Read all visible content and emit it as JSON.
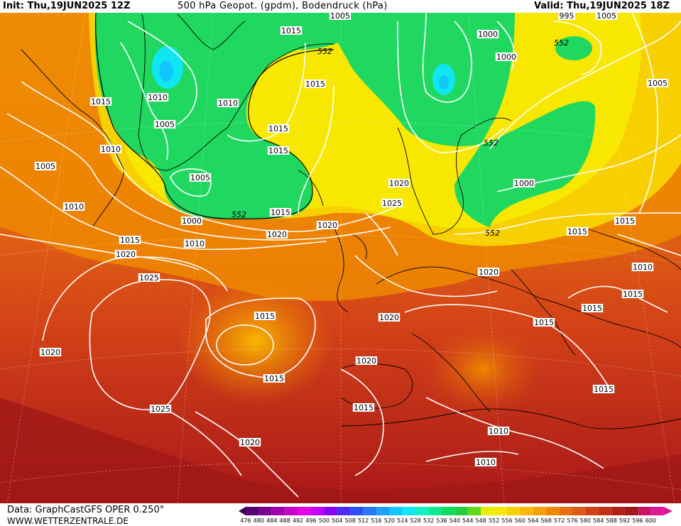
{
  "header": {
    "init": "Init: Thu,19JUN2025 12Z",
    "title": "500 hPa Geopot. (gpdm), Bodendruck (hPa)",
    "valid": "Valid: Thu,19JUN2025 18Z"
  },
  "footer": {
    "data": "Data: GraphCastGFS OPER 0.250°",
    "url": "WWW.WETTERZENTRALE.DE"
  },
  "legend": {
    "values": [
      "476",
      "480",
      "484",
      "488",
      "492",
      "496",
      "500",
      "504",
      "508",
      "512",
      "516",
      "520",
      "524",
      "528",
      "532",
      "536",
      "540",
      "544",
      "548",
      "552",
      "556",
      "560",
      "564",
      "568",
      "572",
      "576",
      "580",
      "584",
      "588",
      "592",
      "596",
      "600"
    ],
    "colors": [
      "#3a0050",
      "#55006e",
      "#7a0090",
      "#a000b0",
      "#c800c8",
      "#e600e6",
      "#c000ff",
      "#8800ff",
      "#4a2cff",
      "#2a50ff",
      "#2a78ff",
      "#20a0ff",
      "#10c8ff",
      "#10e6f0",
      "#10f0c0",
      "#10e890",
      "#10dc60",
      "#20d040",
      "#60d820",
      "#e8f000",
      "#f8e800",
      "#f8d000",
      "#f8b800",
      "#f4a000",
      "#ee8800",
      "#e67010",
      "#de5818",
      "#d24018",
      "#c43018",
      "#b42018",
      "#a01818",
      "#c81464",
      "#e01496"
    ]
  },
  "map_labels": {
    "geopotential": [
      "552",
      "552",
      "552",
      "552",
      "552"
    ],
    "pressure": [
      "1015",
      "1005",
      "1000",
      "1015",
      "1005",
      "995",
      "1000",
      "1005",
      "1015",
      "1010",
      "1010",
      "1015",
      "1015",
      "1005",
      "1010",
      "1005",
      "1000",
      "1020",
      "1025",
      "1000",
      "1010",
      "1015",
      "1020",
      "1020",
      "1005",
      "1010",
      "1015",
      "1015",
      "1015",
      "1020",
      "1020",
      "1025",
      "1025",
      "1015",
      "1015",
      "1020",
      "1010",
      "1010",
      "1015",
      "1015",
      "1015",
      "1020",
      "1020",
      "1015",
      "1020",
      "1015",
      "1010"
    ]
  },
  "colors": {
    "green": "#20d860",
    "yellow": "#f8e800",
    "orange": "#f2a020",
    "red": "#c83818",
    "dark_red": "#a81818"
  }
}
